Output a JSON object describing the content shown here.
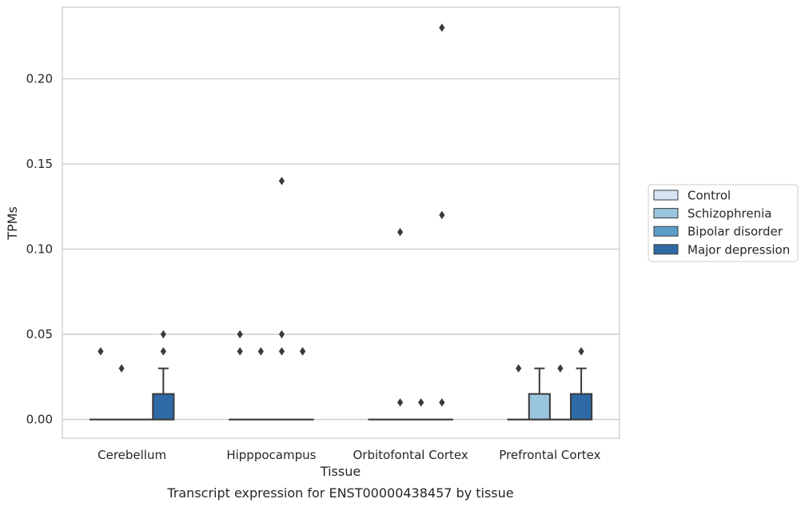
{
  "chart_data": {
    "type": "box",
    "title": "",
    "xlabel": "Tissue",
    "ylabel": "TPMs",
    "caption": "Transcript expression for ENST00000438457 by tissue",
    "ylim": [
      -0.011,
      0.242
    ],
    "yticks": [
      0.0,
      0.05,
      0.1,
      0.15,
      0.2
    ],
    "ytick_labels": [
      "0.00",
      "0.05",
      "0.10",
      "0.15",
      "0.20"
    ],
    "grid": "horizontal",
    "legend_position": "right",
    "categories": [
      "Cerebellum",
      "Hipppocampus",
      "Orbitofontal Cortex",
      "Prefrontal Cortex"
    ],
    "series": [
      {
        "name": "Control",
        "color": "#d5e4f2",
        "boxes": [
          {
            "q1": 0.0,
            "median": 0.0,
            "q3": 0.0,
            "whislo": 0.0,
            "whishi": 0.0,
            "fliers": [
              0.04
            ]
          },
          {
            "q1": 0.0,
            "median": 0.0,
            "q3": 0.0,
            "whislo": 0.0,
            "whishi": 0.0,
            "fliers": [
              0.04,
              0.05
            ]
          },
          {
            "q1": 0.0,
            "median": 0.0,
            "q3": 0.0,
            "whislo": 0.0,
            "whishi": 0.0,
            "fliers": []
          },
          {
            "q1": 0.0,
            "median": 0.0,
            "q3": 0.0,
            "whislo": 0.0,
            "whishi": 0.0,
            "fliers": [
              0.03
            ]
          }
        ]
      },
      {
        "name": "Schizophrenia",
        "color": "#9ac5de",
        "boxes": [
          {
            "q1": 0.0,
            "median": 0.0,
            "q3": 0.0,
            "whislo": 0.0,
            "whishi": 0.0,
            "fliers": [
              0.03
            ]
          },
          {
            "q1": 0.0,
            "median": 0.0,
            "q3": 0.0,
            "whislo": 0.0,
            "whishi": 0.0,
            "fliers": [
              0.04
            ]
          },
          {
            "q1": 0.0,
            "median": 0.0,
            "q3": 0.0,
            "whislo": 0.0,
            "whishi": 0.0,
            "fliers": [
              0.11,
              0.01
            ]
          },
          {
            "q1": 0.0,
            "median": 0.0,
            "q3": 0.015,
            "whislo": 0.0,
            "whishi": 0.03,
            "fliers": []
          }
        ]
      },
      {
        "name": "Bipolar disorder",
        "color": "#5a9dc9",
        "boxes": [
          {
            "q1": 0.0,
            "median": 0.0,
            "q3": 0.0,
            "whislo": 0.0,
            "whishi": 0.0,
            "fliers": []
          },
          {
            "q1": 0.0,
            "median": 0.0,
            "q3": 0.0,
            "whislo": 0.0,
            "whishi": 0.0,
            "fliers": [
              0.14,
              0.05,
              0.04
            ]
          },
          {
            "q1": 0.0,
            "median": 0.0,
            "q3": 0.0,
            "whislo": 0.0,
            "whishi": 0.0,
            "fliers": [
              0.01
            ]
          },
          {
            "q1": 0.0,
            "median": 0.0,
            "q3": 0.0,
            "whislo": 0.0,
            "whishi": 0.0,
            "fliers": [
              0.03
            ]
          }
        ]
      },
      {
        "name": "Major depression",
        "color": "#2f6aa6",
        "boxes": [
          {
            "q1": 0.0,
            "median": 0.0,
            "q3": 0.015,
            "whislo": 0.0,
            "whishi": 0.03,
            "fliers": [
              0.04,
              0.05
            ]
          },
          {
            "q1": 0.0,
            "median": 0.0,
            "q3": 0.0,
            "whislo": 0.0,
            "whishi": 0.0,
            "fliers": [
              0.04,
              0.04
            ]
          },
          {
            "q1": 0.0,
            "median": 0.0,
            "q3": 0.0,
            "whislo": 0.0,
            "whishi": 0.0,
            "fliers": [
              0.23,
              0.12,
              0.01
            ]
          },
          {
            "q1": 0.0,
            "median": 0.0,
            "q3": 0.015,
            "whislo": 0.0,
            "whishi": 0.03,
            "fliers": [
              0.04
            ]
          }
        ]
      }
    ]
  }
}
